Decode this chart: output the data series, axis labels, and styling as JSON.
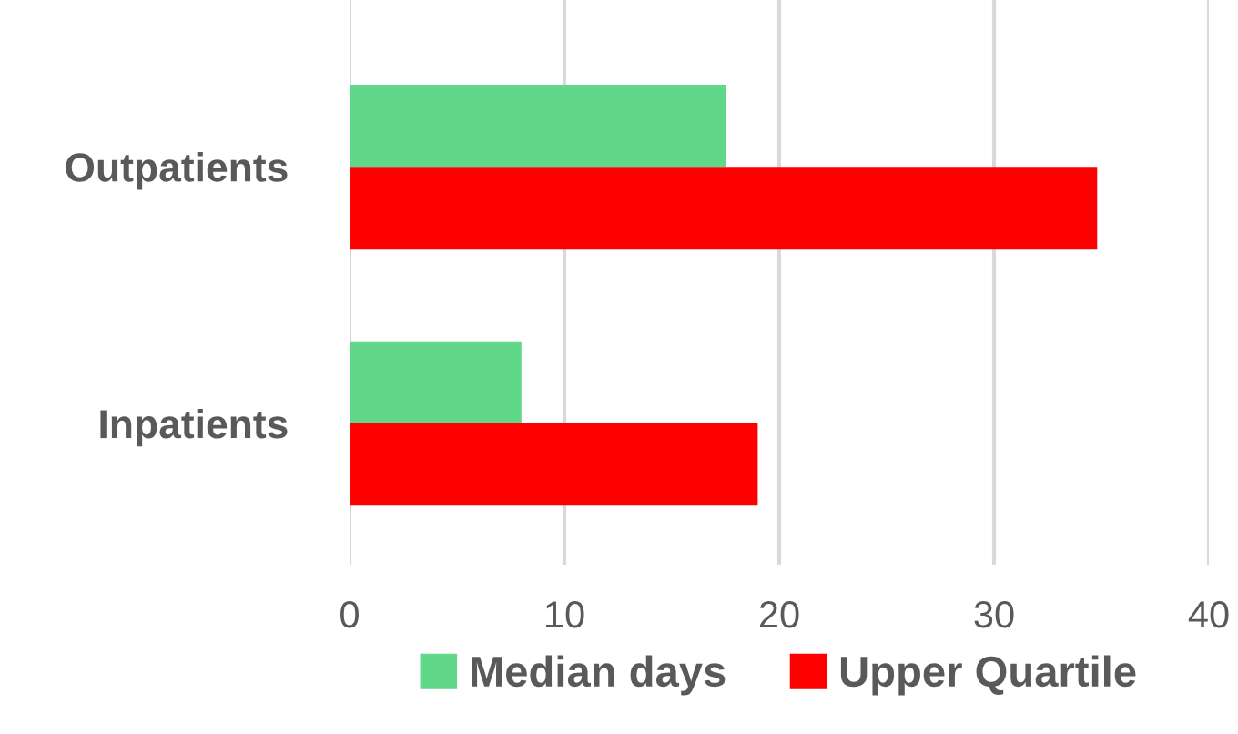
{
  "chart_data": {
    "type": "bar",
    "orientation": "horizontal",
    "categories": [
      "Outpatients",
      "Inpatients"
    ],
    "series": [
      {
        "name": "Median days",
        "color": "#61d78a",
        "values": [
          17.5,
          8.0
        ]
      },
      {
        "name": "Upper Quartile",
        "color": "#ff0000",
        "values": [
          34.8,
          19.0
        ]
      }
    ],
    "xlim": [
      0,
      40
    ],
    "xticks": [
      0,
      10,
      20,
      30,
      40
    ],
    "grid": "x",
    "legend": "bottom"
  }
}
